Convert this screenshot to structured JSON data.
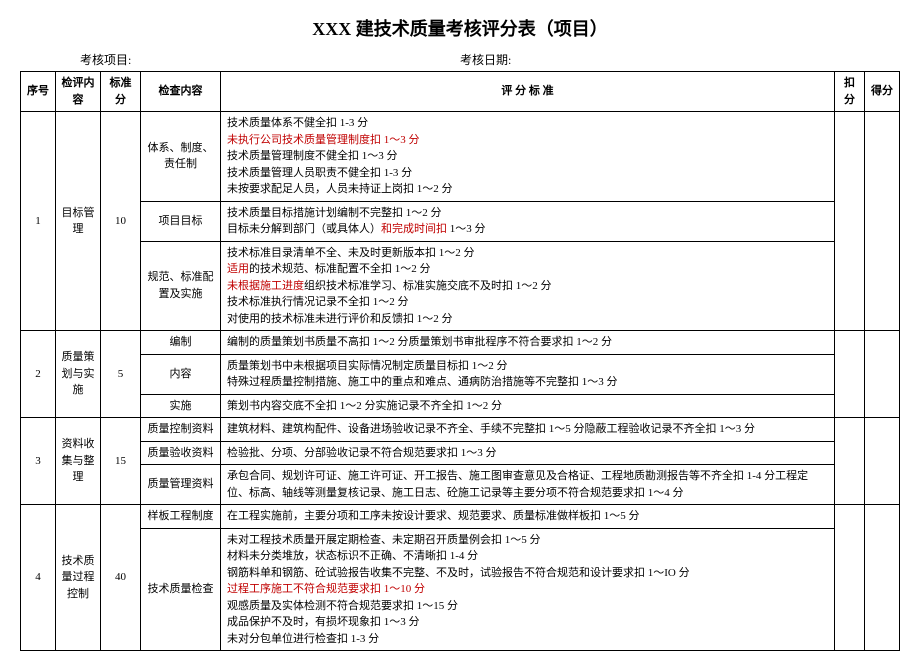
{
  "title": "XXX 建技术质量考核评分表（项目）",
  "header": {
    "project_label": "考核项目:",
    "date_label": "考核日期:"
  },
  "columns": {
    "seq": "序号",
    "category": "检评内容",
    "std_score": "标准分",
    "check_item": "检查内容",
    "criteria": "评    分    标    准",
    "deduct": "扣分",
    "score": "得分"
  },
  "rows": [
    {
      "seq": "1",
      "category": "目标管理",
      "std_score": "10",
      "items": [
        {
          "check_item": "体系、制度、责任制",
          "criteria_lines": [
            {
              "text": "技术质量体系不健全扣 1-3 分"
            },
            {
              "text": "未执行公司技术质量管理制度扣 1～3 分",
              "red": true
            },
            {
              "text": "技术质量管理制度不健全扣 1～3 分"
            },
            {
              "text": "技术质量管理人员职责不健全扣 1-3 分"
            },
            {
              "text": "未按要求配足人员，人员未持证上岗扣 1～2 分"
            }
          ]
        },
        {
          "check_item": "项目目标",
          "criteria_lines": [
            {
              "text": "技术质量目标措施计划编制不完整扣 1～2 分"
            },
            {
              "prefix": "目标未分解到部门（或具体人）",
              "red_text": "和完成时间扣",
              "suffix": " 1～3 分"
            }
          ]
        },
        {
          "check_item": "规范、标准配置及实施",
          "criteria_lines": [
            {
              "text": "技术标准目录清单不全、未及时更新版本扣 1～2 分"
            },
            {
              "red_text": "适用",
              "suffix": "的技术规范、标准配置不全扣 1～2 分"
            },
            {
              "red_text": "未根据施工进度",
              "suffix": "组织技术标准学习、标准实施交底不及时扣 1～2 分"
            },
            {
              "text": "技术标准执行情况记录不全扣 1～2 分"
            },
            {
              "text": "对使用的技术标准未进行评价和反馈扣 1～2 分"
            }
          ]
        }
      ]
    },
    {
      "seq": "2",
      "category": "质量策划与实施",
      "std_score": "5",
      "items": [
        {
          "check_item": "编制",
          "criteria_lines": [
            {
              "text": "编制的质量策划书质量不高扣 1～2 分质量策划书审批程序不符合要求扣 1～2 分"
            }
          ]
        },
        {
          "check_item": "内容",
          "criteria_lines": [
            {
              "text": "质量策划书中未根据项目实际情况制定质量目标扣 1～2 分"
            },
            {
              "text": "特殊过程质量控制措施、施工中的重点和难点、通病防治措施等不完整扣 1～3 分"
            }
          ]
        },
        {
          "check_item": "实施",
          "criteria_lines": [
            {
              "text": "策划书内容交底不全扣 1～2 分实施记录不齐全扣 1～2 分"
            }
          ]
        }
      ]
    },
    {
      "seq": "3",
      "category": "资料收集与整理",
      "std_score": "15",
      "items": [
        {
          "check_item": "质量控制资料",
          "criteria_lines": [
            {
              "text": "建筑材料、建筑构配件、设备进场验收记录不齐全、手续不完整扣 1～5 分隐蔽工程验收记录不齐全扣 1～3 分"
            }
          ]
        },
        {
          "check_item": "质量验收资料",
          "criteria_lines": [
            {
              "text": "检验批、分项、分部验收记录不符合规范要求扣 1～3 分"
            }
          ]
        },
        {
          "check_item": "质量管理资料",
          "criteria_lines": [
            {
              "text": "承包合同、规划许可证、施工许可证、开工报告、施工图审查意见及合格证、工程地质勘测报告等不齐全扣 1-4 分工程定位、标高、轴线等测量复核记录、施工日志、砼施工记录等主要分项不符合规范要求扣 1～4 分"
            }
          ]
        }
      ]
    },
    {
      "seq": "4",
      "category": "技术质量过程控制",
      "std_score": "40",
      "items": [
        {
          "check_item": "样板工程制度",
          "criteria_lines": [
            {
              "text": "在工程实施前，主要分项和工序未按设计要求、规范要求、质量标准做样板扣 1～5 分"
            }
          ]
        },
        {
          "check_item": "技术质量检查",
          "criteria_lines": [
            {
              "text": "未对工程技术质量开展定期检查、未定期召开质量例会扣 1～5 分"
            },
            {
              "text": "材料未分类堆放，状态标识不正确、不清晰扣 1-4 分"
            },
            {
              "text": "钢筋料单和钢筋、砼试验报告收集不完整、不及时，试验报告不符合规范和设计要求扣 1～IO 分"
            },
            {
              "text": "过程工序施工不符合规范要求扣 1～10 分",
              "red": true
            },
            {
              "text": "观感质量及实体检测不符合规范要求扣 1～15 分"
            },
            {
              "text": "成品保护不及时，有损坏现象扣 1～3 分"
            },
            {
              "text": "未对分包单位进行检查扣 1-3 分"
            }
          ]
        }
      ]
    }
  ]
}
